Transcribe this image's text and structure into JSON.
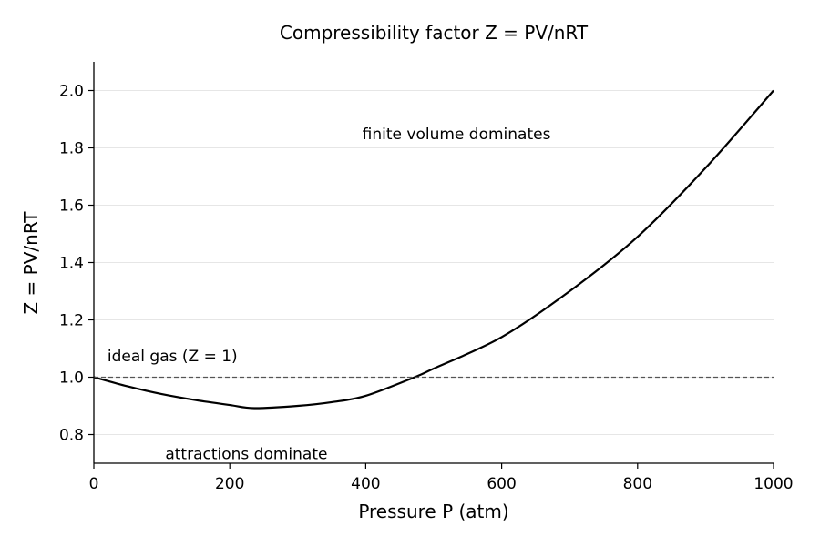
{
  "chart_data": {
    "type": "line",
    "title": "Compressibility factor Z = PV/nRT",
    "xlabel": "Pressure P (atm)",
    "ylabel": "Z = PV/nRT",
    "xlim": [
      0,
      1000
    ],
    "ylim": [
      0.7,
      2.1
    ],
    "xticks": [
      0,
      200,
      400,
      600,
      800,
      1000
    ],
    "yticks": [
      0.8,
      1.0,
      1.2,
      1.4,
      1.6,
      1.8,
      2.0
    ],
    "xtick_labels": [
      "0",
      "200",
      "400",
      "600",
      "800",
      "1000"
    ],
    "ytick_labels": [
      "0.8",
      "1.0",
      "1.2",
      "1.4",
      "1.6",
      "1.8",
      "2.0"
    ],
    "grid": "horizontal",
    "series": [
      {
        "x": [
          0,
          50,
          100,
          150,
          200,
          236,
          300,
          350,
          400,
          472,
          500,
          600,
          700,
          800,
          900,
          1000
        ],
        "y": [
          1.0,
          0.968,
          0.941,
          0.92,
          0.903,
          0.892,
          0.9,
          0.913,
          0.935,
          1.0,
          1.03,
          1.14,
          1.3,
          1.49,
          1.73,
          2.0
        ],
        "color": "#000000",
        "style": "solid"
      },
      {
        "x": [
          0,
          1000
        ],
        "y": [
          1.0,
          1.0
        ],
        "color": "#555555",
        "style": "dashed"
      }
    ],
    "annotations": [
      {
        "text": "ideal gas (Z = 1)",
        "x": 20,
        "y": 1.055
      },
      {
        "text": "finite volume dominates",
        "x": 395,
        "y": 1.83
      },
      {
        "text": "attractions dominate",
        "x": 105,
        "y": 0.715
      }
    ]
  }
}
